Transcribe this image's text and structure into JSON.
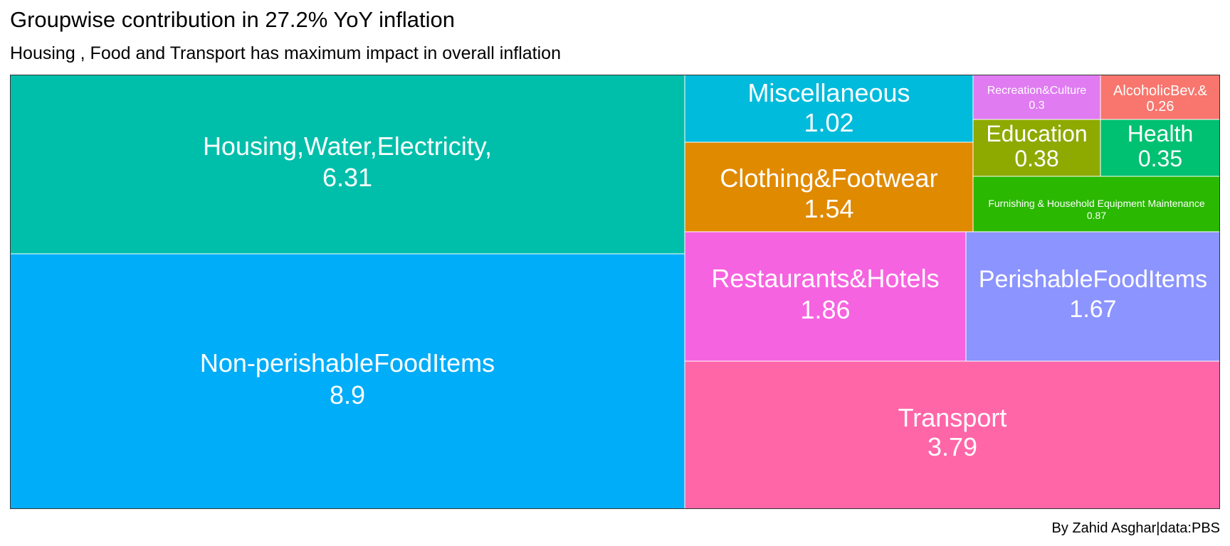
{
  "chart_data": {
    "type": "treemap",
    "title": "Groupwise contribution in 27.2% YoY inflation",
    "subtitle": "Housing , Food and Transport has maximum impact in overall inflation",
    "caption": "By Zahid Asghar|data:PBS",
    "items": [
      {
        "label": "Housing,Water,Electricity,",
        "value": 6.31,
        "value_label": "6.31",
        "color": "#00BFAA"
      },
      {
        "label": "Non-perishableFoodItems",
        "value": 8.9,
        "value_label": "8.9",
        "color": "#00ADF9"
      },
      {
        "label": "Miscellaneous",
        "value": 1.02,
        "value_label": "1.02",
        "color": "#00BBDB"
      },
      {
        "label": "Clothing&Footwear",
        "value": 1.54,
        "value_label": "1.54",
        "color": "#E08A00"
      },
      {
        "label": "Restaurants&Hotels",
        "value": 1.86,
        "value_label": "1.86",
        "color": "#F663E0"
      },
      {
        "label": "PerishableFoodItems",
        "value": 1.67,
        "value_label": "1.67",
        "color": "#8C94FF"
      },
      {
        "label": "Transport",
        "value": 3.79,
        "value_label": "3.79",
        "color": "#FF66A8"
      },
      {
        "label": "Recreation&Culture",
        "value": 0.3,
        "value_label": "0.3",
        "color": "#E07BF2"
      },
      {
        "label": "AlcoholicBev.&",
        "value": 0.26,
        "value_label": "0.26",
        "color": "#F8766D"
      },
      {
        "label": "Education",
        "value": 0.38,
        "value_label": "0.38",
        "color": "#8EAA00"
      },
      {
        "label": "Health",
        "value": 0.35,
        "value_label": "0.35",
        "color": "#00C072"
      },
      {
        "label": "Furnishing & Household Equipment Maintenance",
        "value": 0.87,
        "value_label": "0.87",
        "color": "#2AB800"
      }
    ]
  }
}
